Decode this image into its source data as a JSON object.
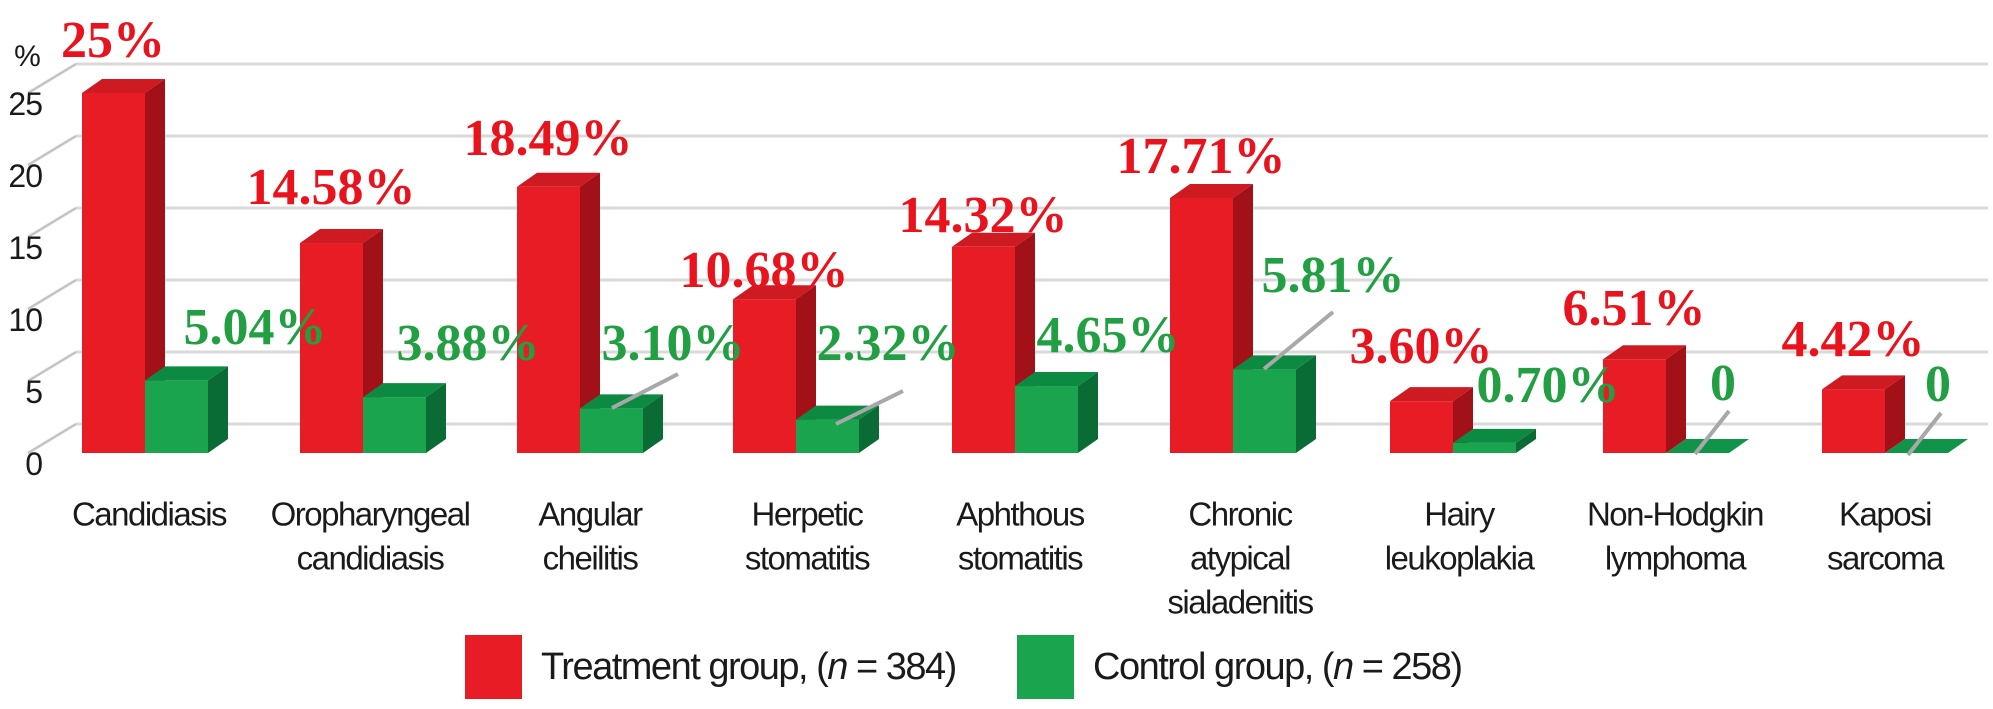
{
  "figure": {
    "y_axis": {
      "unit": "%",
      "ticks": [
        "0",
        "5",
        "10",
        "15",
        "20",
        "25"
      ]
    },
    "legend": [
      {
        "color": "#e81c25",
        "parts": [
          {
            "text": "Treatment group, (",
            "italic": false
          },
          {
            "text": "n",
            "italic": true
          },
          {
            "text": " = 384)",
            "italic": false
          }
        ]
      },
      {
        "color": "#1aa44d",
        "parts": [
          {
            "text": "Control group, (",
            "italic": false
          },
          {
            "text": "n",
            "italic": true
          },
          {
            "text": " = 258)",
            "italic": false
          }
        ]
      }
    ]
  },
  "chart_data": {
    "type": "bar",
    "style": "3d-grouped",
    "title": "",
    "xlabel": "",
    "ylabel": "%",
    "ylim": [
      0,
      25
    ],
    "y_ticks": [
      0,
      5,
      10,
      15,
      20,
      25
    ],
    "grid": true,
    "legend_position": "bottom",
    "categories": [
      "Candidiasis",
      "Oropharyngeal candidiasis",
      "Angular cheilitis",
      "Herpetic stomatitis",
      "Aphthous stomatitis",
      "Chronic atypical sialadenitis",
      "Hairy leukoplakia",
      "Non-Hodgkin lymphoma",
      "Kaposi sarcoma"
    ],
    "category_lines": [
      [
        "Candidiasis"
      ],
      [
        "Oropharyngeal",
        "candidiasis"
      ],
      [
        "Angular",
        "cheilitis"
      ],
      [
        "Herpetic",
        "stomatitis"
      ],
      [
        "Aphthous",
        "stomatitis"
      ],
      [
        "Chronic",
        "atypical",
        "sialadenitis"
      ],
      [
        "Hairy",
        "leukoplakia"
      ],
      [
        "Non-Hodgkin",
        "lymphoma"
      ],
      [
        "Kaposi",
        "sarcoma"
      ]
    ],
    "series": [
      {
        "name": "Treatment group",
        "n": 384,
        "values": [
          25,
          14.58,
          18.49,
          10.68,
          14.32,
          17.71,
          3.6,
          6.51,
          4.42
        ],
        "value_labels": [
          "25%",
          "14.58%",
          "18.49%",
          "10.68%",
          "14.32%",
          "17.71%",
          "3.60%",
          "6.51%",
          "4.42%"
        ],
        "colors": {
          "front": "#e81c25",
          "top": "#ce1b22",
          "side": "#a31118",
          "label": "#e8131c"
        }
      },
      {
        "name": "Control group",
        "n": 258,
        "values": [
          5.04,
          3.88,
          3.1,
          2.32,
          4.65,
          5.81,
          0.7,
          0,
          0
        ],
        "value_labels": [
          "5.04%",
          "3.88%",
          "3.10%",
          "2.32%",
          "4.65%",
          "5.81%",
          "0.70%",
          "0",
          "0"
        ],
        "colors": {
          "front": "#1aa44d",
          "top": "#0d8a42",
          "side": "#0b6b35",
          "floor": "#119449",
          "label": "#229f42"
        }
      }
    ],
    "grid_color": "#d9d9d9",
    "callout_line_color": "#a8a8a8"
  }
}
